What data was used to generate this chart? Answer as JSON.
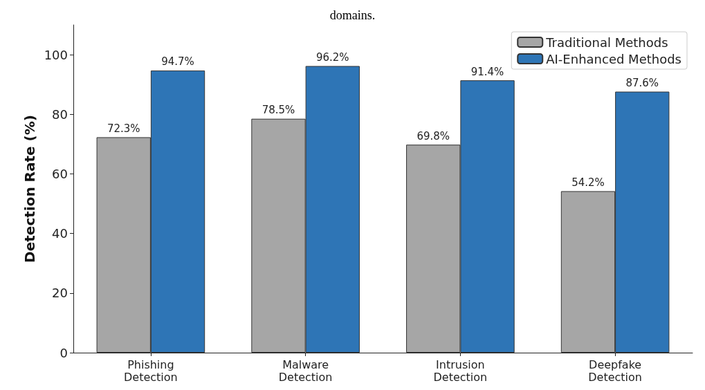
{
  "chart_data": {
    "type": "bar",
    "title": "domains.",
    "ylabel": "Detection Rate (%)",
    "categories": [
      "Phishing\nDetection",
      "Malware\nDetection",
      "Intrusion\nDetection",
      "Deepfake\nDetection"
    ],
    "series": [
      {
        "name": "Traditional Methods",
        "color": "#a6a6a6",
        "values": [
          72.3,
          78.5,
          69.8,
          54.2
        ],
        "value_labels": [
          "72.3%",
          "78.5%",
          "69.8%",
          "54.2%"
        ]
      },
      {
        "name": "AI-Enhanced Methods",
        "color": "#2e75b6",
        "values": [
          94.7,
          96.2,
          91.4,
          87.6
        ],
        "value_labels": [
          "94.7%",
          "96.2%",
          "91.4%",
          "87.6%"
        ]
      }
    ],
    "ylim": [
      0,
      110
    ],
    "yticks": [
      0,
      20,
      40,
      60,
      80,
      100
    ],
    "grid": false,
    "legend": "top right"
  }
}
